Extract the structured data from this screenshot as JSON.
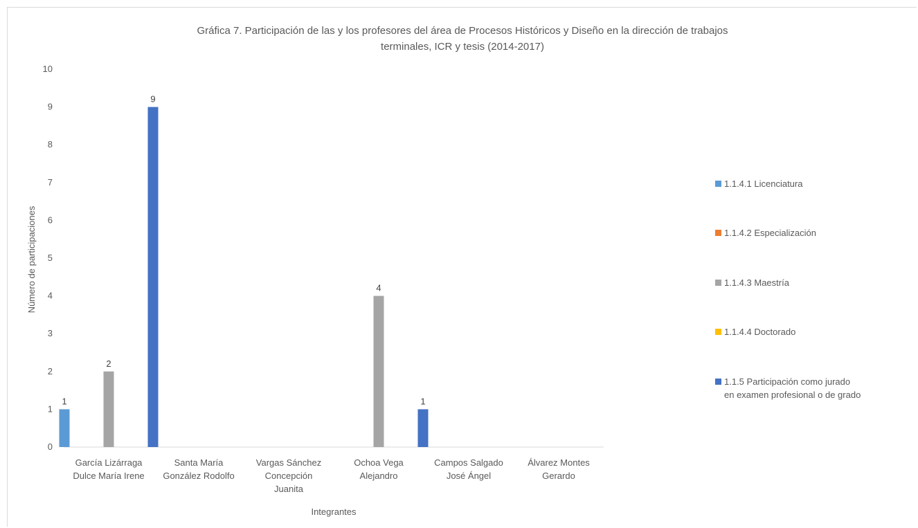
{
  "chart_data": {
    "type": "bar",
    "title_lines": [
      "Gráfica 7. Participación de las y los profesores del área de Procesos Históricos y Diseño en la dirección de trabajos",
      "terminales, ICR y tesis (2014-2017)"
    ],
    "xlabel": "Integrantes",
    "ylabel": "Número de participaciones",
    "ylim": [
      0,
      10
    ],
    "yticks": [
      "0",
      "1",
      "2",
      "3",
      "4",
      "5",
      "6",
      "7",
      "8",
      "9",
      "10"
    ],
    "grid": false,
    "legend_position": "right",
    "categories": [
      [
        "García Lizárraga",
        "Dulce María Irene"
      ],
      [
        "Santa María",
        "González Rodolfo"
      ],
      [
        "Vargas Sánchez",
        "Concepción",
        "Juanita"
      ],
      [
        "Ochoa Vega",
        "Alejandro"
      ],
      [
        "Campos Salgado",
        "José Ángel"
      ],
      [
        "Álvarez Montes",
        "Gerardo"
      ]
    ],
    "series": [
      {
        "name_lines": [
          "1.1.4.1 Licenciatura"
        ],
        "color": "#5b9bd5",
        "values": [
          1,
          0,
          0,
          0,
          0,
          0
        ]
      },
      {
        "name_lines": [
          "1.1.4.2 Especialización"
        ],
        "color": "#ed7d31",
        "values": [
          0,
          0,
          0,
          0,
          0,
          0
        ]
      },
      {
        "name_lines": [
          "1.1.4.3 Maestría"
        ],
        "color": "#a5a5a5",
        "values": [
          2,
          0,
          0,
          4,
          0,
          0
        ]
      },
      {
        "name_lines": [
          "1.1.4.4 Doctorado"
        ],
        "color": "#ffc000",
        "values": [
          0,
          0,
          0,
          0,
          0,
          0
        ]
      },
      {
        "name_lines": [
          "1.1.5 Participación como jurado",
          "en examen profesional o de grado"
        ],
        "color": "#4472c4",
        "values": [
          9,
          0,
          0,
          1,
          0,
          0
        ]
      }
    ]
  }
}
